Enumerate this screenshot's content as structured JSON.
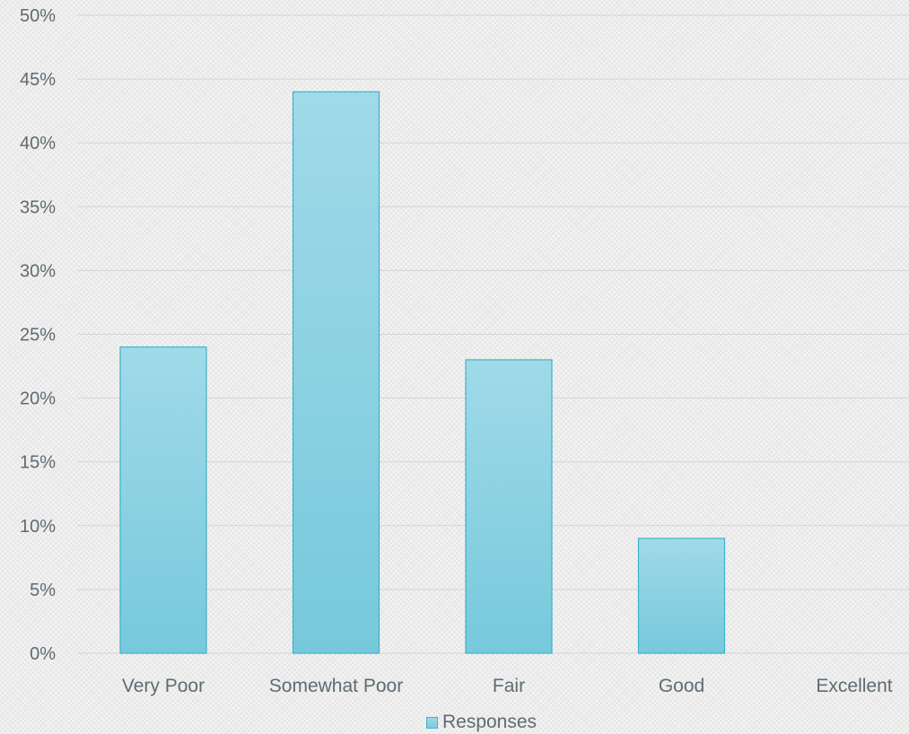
{
  "chart_data": {
    "type": "bar",
    "categories": [
      "Very Poor",
      "Somewhat Poor",
      "Fair",
      "Good",
      "Excellent"
    ],
    "series": [
      {
        "name": "Responses",
        "values": [
          24,
          44,
          23,
          9,
          0
        ]
      }
    ],
    "y_ticks": [
      "0%",
      "5%",
      "10%",
      "15%",
      "20%",
      "25%",
      "30%",
      "35%",
      "40%",
      "45%",
      "50%"
    ],
    "ylim": [
      0,
      50
    ],
    "y_unit": "%",
    "grid": true,
    "legend_position": "bottom-center",
    "colors": {
      "bar_top": "#a0dae9",
      "bar_bottom": "#76c9dc",
      "bar_border": "#3fb2c8",
      "text": "#5f6b72",
      "gridline": "#d4d4d4"
    }
  }
}
